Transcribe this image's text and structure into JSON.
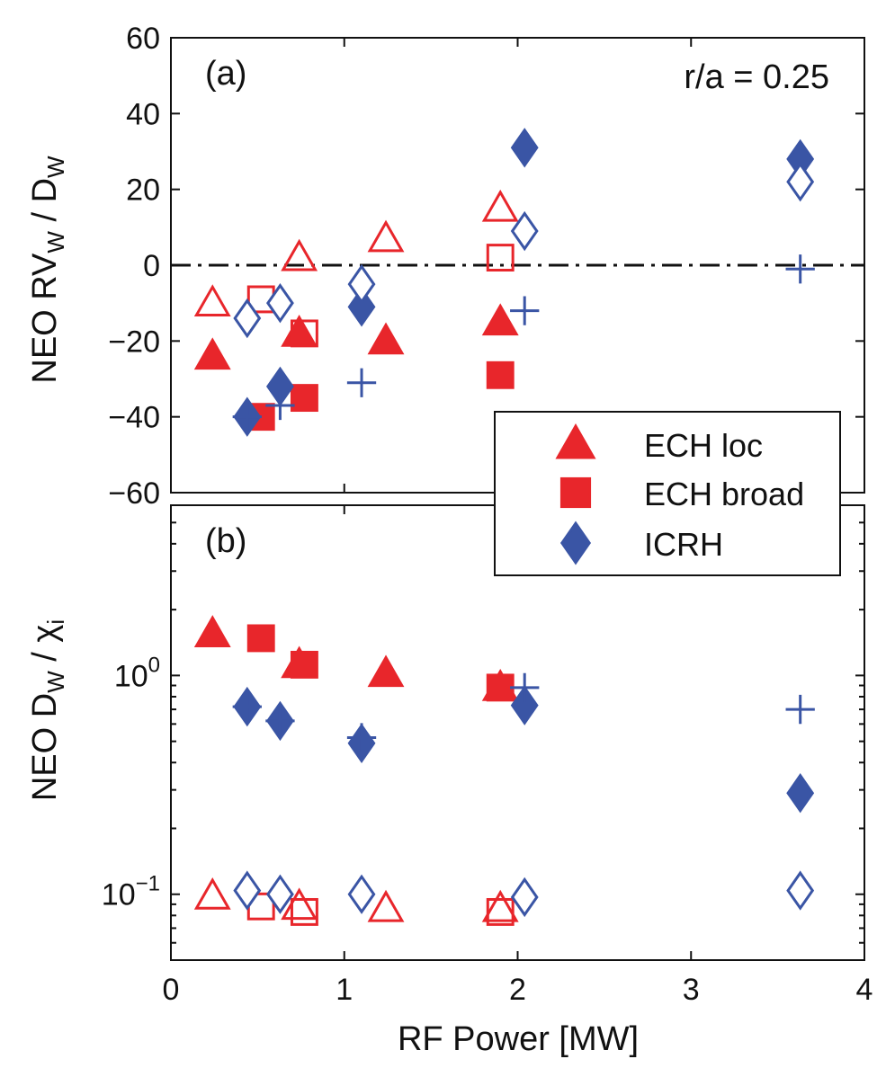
{
  "colors": {
    "ech": "#e8262b",
    "icrh": "#3a55a5",
    "axis": "#111111"
  },
  "chart_data": [
    {
      "panel": "a",
      "type": "scatter",
      "panel_label": "(a)",
      "annotation": "r/a = 0.25",
      "ylabel": "NEO RV",
      "ylabel_sub": "W",
      "ylabel_mid": " / D",
      "ylabel_sub2": "W",
      "xlim": [
        0,
        4
      ],
      "ylim": [
        -60,
        60
      ],
      "y_scale": "linear",
      "yticks": [
        60,
        40,
        20,
        0,
        -20,
        -40,
        -60
      ],
      "ytick_labels": [
        "60",
        "40",
        "20",
        "0",
        "−20",
        "−40",
        "−60"
      ],
      "reference_line": {
        "y": 0,
        "style": "dash-dot"
      },
      "series": [
        {
          "group": "ECH loc",
          "fill": "filled",
          "marker": "triangle",
          "color": "ech",
          "points": [
            [
              0.24,
              -24
            ],
            [
              0.74,
              -18
            ],
            [
              1.24,
              -20
            ],
            [
              1.9,
              -15
            ]
          ]
        },
        {
          "group": "ECH loc",
          "fill": "open",
          "marker": "triangle",
          "color": "ech",
          "points": [
            [
              0.24,
              -10
            ],
            [
              0.74,
              2
            ],
            [
              1.24,
              7
            ],
            [
              1.9,
              15
            ]
          ]
        },
        {
          "group": "ECH broad",
          "fill": "filled",
          "marker": "square",
          "color": "ech",
          "points": [
            [
              0.52,
              -40
            ],
            [
              0.77,
              -35
            ],
            [
              1.9,
              -29
            ]
          ]
        },
        {
          "group": "ECH broad",
          "fill": "open",
          "marker": "square",
          "color": "ech",
          "points": [
            [
              0.52,
              -9
            ],
            [
              0.77,
              -18
            ],
            [
              1.9,
              2
            ]
          ]
        },
        {
          "group": "ICRH",
          "fill": "filled",
          "marker": "diamond",
          "color": "icrh",
          "points": [
            [
              0.44,
              -40
            ],
            [
              0.63,
              -32
            ],
            [
              1.1,
              -11
            ],
            [
              2.04,
              31
            ],
            [
              3.63,
              28
            ]
          ]
        },
        {
          "group": "ICRH",
          "fill": "open",
          "marker": "diamond",
          "color": "icrh",
          "points": [
            [
              0.44,
              -14
            ],
            [
              0.63,
              -10
            ],
            [
              1.1,
              -5
            ],
            [
              2.04,
              9
            ],
            [
              3.63,
              22
            ]
          ]
        },
        {
          "group": "ICRH",
          "fill": "plus",
          "marker": "plus",
          "color": "icrh",
          "points": [
            [
              0.44,
              -40
            ],
            [
              0.63,
              -37
            ],
            [
              1.1,
              -31
            ],
            [
              2.04,
              -12
            ],
            [
              3.63,
              -1
            ]
          ]
        }
      ]
    },
    {
      "panel": "b",
      "type": "scatter",
      "panel_label": "(b)",
      "xlabel": "RF Power [MW]",
      "ylabel": "NEO D",
      "ylabel_sub": "W",
      "ylabel_mid": " / χ",
      "ylabel_sub2": "i",
      "xlim": [
        0,
        4
      ],
      "ylim": [
        0.05,
        6
      ],
      "y_scale": "log",
      "xticks": [
        0,
        1,
        2,
        3,
        4
      ],
      "xtick_labels": [
        "0",
        "1",
        "2",
        "3",
        "4"
      ],
      "ytick_major": [
        {
          "value": 1,
          "base": "10",
          "exp": "0"
        },
        {
          "value": 0.1,
          "base": "10",
          "exp": "−1"
        }
      ],
      "series": [
        {
          "group": "ECH loc",
          "fill": "filled",
          "marker": "triangle",
          "color": "ech",
          "points": [
            [
              0.24,
              1.55
            ],
            [
              0.74,
              1.12
            ],
            [
              1.24,
              1.02
            ],
            [
              1.9,
              0.88
            ]
          ]
        },
        {
          "group": "ECH loc",
          "fill": "open",
          "marker": "triangle",
          "color": "ech",
          "points": [
            [
              0.24,
              0.098
            ],
            [
              0.74,
              0.088
            ],
            [
              1.24,
              0.086
            ],
            [
              1.9,
              0.086
            ]
          ]
        },
        {
          "group": "ECH broad",
          "fill": "filled",
          "marker": "square",
          "color": "ech",
          "points": [
            [
              0.52,
              1.48
            ],
            [
              0.77,
              1.12
            ],
            [
              1.9,
              0.88
            ]
          ]
        },
        {
          "group": "ECH broad",
          "fill": "open",
          "marker": "square",
          "color": "ech",
          "points": [
            [
              0.52,
              0.088
            ],
            [
              0.77,
              0.083
            ],
            [
              1.9,
              0.083
            ]
          ]
        },
        {
          "group": "ICRH",
          "fill": "filled",
          "marker": "diamond",
          "color": "icrh",
          "points": [
            [
              0.44,
              0.72
            ],
            [
              0.63,
              0.62
            ],
            [
              1.1,
              0.49
            ],
            [
              2.04,
              0.73
            ],
            [
              3.63,
              0.29
            ]
          ]
        },
        {
          "group": "ICRH",
          "fill": "open",
          "marker": "diamond",
          "color": "icrh",
          "points": [
            [
              0.44,
              0.104
            ],
            [
              0.63,
              0.1
            ],
            [
              1.1,
              0.1
            ],
            [
              2.04,
              0.097
            ],
            [
              3.63,
              0.104
            ]
          ]
        },
        {
          "group": "ICRH",
          "fill": "plus",
          "marker": "plus",
          "color": "icrh",
          "points": [
            [
              0.44,
              0.72
            ],
            [
              0.63,
              0.62
            ],
            [
              1.1,
              0.52
            ],
            [
              2.04,
              0.88
            ],
            [
              3.63,
              0.7
            ]
          ]
        }
      ]
    }
  ],
  "legend": {
    "placement": "straddling panels, right",
    "entries": [
      {
        "label": "ECH loc",
        "marker": "triangle",
        "color": "ech"
      },
      {
        "label": "ECH broad",
        "marker": "square",
        "color": "ech"
      },
      {
        "label": "ICRH",
        "marker": "diamond",
        "color": "icrh"
      }
    ]
  }
}
